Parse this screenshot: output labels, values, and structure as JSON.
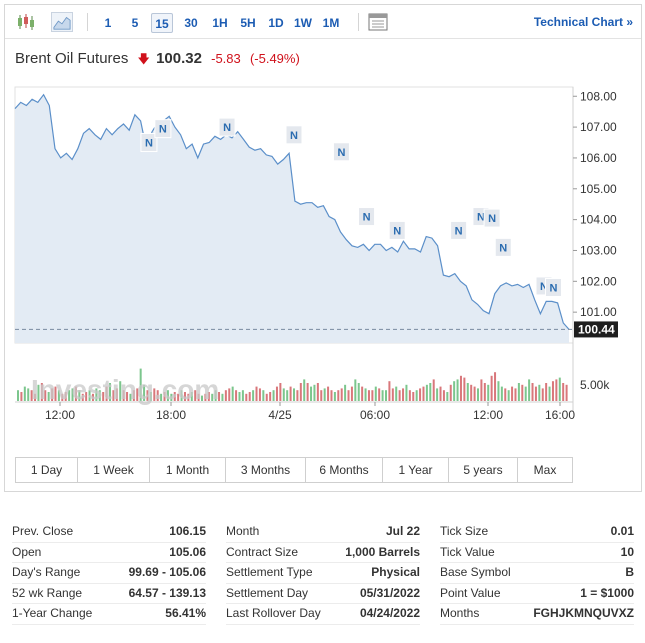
{
  "toolbar": {
    "timeframes": [
      "1",
      "5",
      "15",
      "30",
      "1H",
      "5H",
      "1D",
      "1W",
      "1M"
    ],
    "active_timeframe": "15",
    "technical_link": "Technical Chart »"
  },
  "quote": {
    "title": "Brent Oil Futures",
    "price": "100.32",
    "change": "-5.83",
    "change_pct": "(-5.49%)",
    "direction_icon": "down-arrow-icon",
    "down_color": "#d0111b"
  },
  "chart_data": {
    "type": "area",
    "line_color": "#5b8fc9",
    "fill_color": "#e3ebf4",
    "x_ticks": [
      "12:00",
      "18:00",
      "4/25",
      "06:00",
      "12:00",
      "16:00"
    ],
    "y_ticks": [
      "108.00",
      "107.00",
      "106.00",
      "105.00",
      "104.00",
      "103.00",
      "102.00",
      "101.00"
    ],
    "ylim": [
      100.0,
      108.3
    ],
    "last_price_label": "100.44",
    "last_price": 100.44,
    "volume_label": "5.00k",
    "news_marker": "N",
    "prices": [
      107.6,
      107.8,
      107.7,
      107.9,
      107.8,
      108.05,
      107.7,
      106.3,
      106.0,
      106.15,
      105.95,
      106.3,
      106.8,
      106.95,
      106.75,
      106.6,
      106.95,
      106.75,
      106.95,
      107.1,
      106.9,
      107.4,
      107.2,
      106.3,
      106.85,
      107.15,
      107.2,
      107.35,
      107.0,
      106.75,
      106.3,
      106.45,
      106.0,
      106.45,
      106.5,
      106.7,
      106.6,
      106.75,
      106.65,
      106.85,
      106.6,
      106.35,
      106.25,
      106.3,
      106.1,
      106.05,
      105.8,
      105.95,
      106.15,
      104.6,
      104.5,
      104.55,
      104.55,
      104.4,
      104.45,
      104.1,
      104.0,
      103.6,
      103.35,
      103.15,
      103.1,
      103.2,
      103.0,
      103.2,
      103.2,
      103.0,
      103.1,
      102.95,
      103.3,
      103.05,
      103.05,
      102.95,
      103.45,
      103.4,
      103.15,
      102.2,
      102.15,
      102.25,
      102.0,
      101.85,
      101.4,
      101.25,
      101.05,
      100.95,
      101.6,
      101.85,
      101.95,
      101.85,
      101.9,
      101.8,
      101.9,
      101.4,
      100.95,
      101.35,
      101.35,
      101.3,
      100.65,
      100.44
    ],
    "news_markers": [
      {
        "x": 0.24,
        "y": 106.5
      },
      {
        "x": 0.265,
        "y": 106.95
      },
      {
        "x": 0.38,
        "y": 107.0
      },
      {
        "x": 0.5,
        "y": 106.75
      },
      {
        "x": 0.585,
        "y": 106.2
      },
      {
        "x": 0.63,
        "y": 104.1
      },
      {
        "x": 0.685,
        "y": 103.65
      },
      {
        "x": 0.795,
        "y": 103.65
      },
      {
        "x": 0.835,
        "y": 104.1
      },
      {
        "x": 0.855,
        "y": 104.05
      },
      {
        "x": 0.875,
        "y": 103.1
      },
      {
        "x": 0.948,
        "y": 101.85
      },
      {
        "x": 0.965,
        "y": 101.8
      }
    ],
    "volumes": [
      0.3,
      0.25,
      0.4,
      0.35,
      0.3,
      0.2,
      0.45,
      0.5,
      0.3,
      0.25,
      0.35,
      0.4,
      0.3,
      0.2,
      0.25,
      0.3,
      0.35,
      0.4,
      0.3,
      0.2,
      0.25,
      0.3,
      0.2,
      0.35,
      0.3,
      0.25,
      0.4,
      0.5,
      0.3,
      0.35,
      0.55,
      0.3,
      0.25,
      0.2,
      0.3,
      0.35,
      0.9,
      0.45,
      0.3,
      0.25,
      0.35,
      0.3,
      0.2,
      0.25,
      0.3,
      0.2,
      0.25,
      0.2,
      0.3,
      0.25,
      0.2,
      0.25,
      0.3,
      0.2,
      0.15,
      0.2,
      0.25,
      0.2,
      0.3,
      0.25,
      0.2,
      0.3,
      0.35,
      0.4,
      0.3,
      0.25,
      0.3,
      0.2,
      0.25,
      0.3,
      0.4,
      0.35,
      0.3,
      0.2,
      0.25,
      0.3,
      0.4,
      0.5,
      0.35,
      0.3,
      0.4,
      0.35,
      0.3,
      0.5,
      0.6,
      0.5,
      0.4,
      0.45,
      0.5,
      0.3,
      0.35,
      0.4,
      0.3,
      0.25,
      0.3,
      0.35,
      0.45,
      0.3,
      0.4,
      0.6,
      0.5,
      0.4,
      0.35,
      0.3,
      0.3,
      0.4,
      0.35,
      0.3,
      0.3,
      0.55,
      0.35,
      0.4,
      0.3,
      0.35,
      0.45,
      0.3,
      0.25,
      0.3,
      0.35,
      0.4,
      0.45,
      0.5,
      0.6,
      0.35,
      0.4,
      0.3,
      0.25,
      0.45,
      0.55,
      0.6,
      0.7,
      0.65,
      0.5,
      0.45,
      0.4,
      0.35,
      0.6,
      0.5,
      0.45,
      0.7,
      0.8,
      0.55,
      0.4,
      0.35,
      0.3,
      0.4,
      0.35,
      0.5,
      0.45,
      0.4,
      0.6,
      0.5,
      0.4,
      0.45,
      0.35,
      0.5,
      0.4,
      0.55,
      0.6,
      0.65,
      0.5,
      0.45
    ],
    "volume_colors": {
      "up": "#7cc68d",
      "down": "#d9777b"
    }
  },
  "ranges": [
    "1 Day",
    "1 Week",
    "1 Month",
    "3 Months",
    "6 Months",
    "1 Year",
    "5 years",
    "Max"
  ],
  "watermark": "Investing.com",
  "stats": {
    "col1": [
      {
        "label": "Prev. Close",
        "value": "106.15"
      },
      {
        "label": "Open",
        "value": "105.06"
      },
      {
        "label": "Day's Range",
        "value": "99.69 - 105.06"
      },
      {
        "label": "52 wk Range",
        "value": "64.57 - 139.13"
      },
      {
        "label": "1-Year Change",
        "value": "56.41%"
      }
    ],
    "col2": [
      {
        "label": "Month",
        "value": "Jul 22"
      },
      {
        "label": "Contract Size",
        "value": "1,000 Barrels"
      },
      {
        "label": "Settlement Type",
        "value": "Physical"
      },
      {
        "label": "Settlement Day",
        "value": "05/31/2022"
      },
      {
        "label": "Last Rollover Day",
        "value": "04/24/2022"
      }
    ],
    "col3": [
      {
        "label": "Tick Size",
        "value": "0.01"
      },
      {
        "label": "Tick Value",
        "value": "10"
      },
      {
        "label": "Base Symbol",
        "value": "B"
      },
      {
        "label": "Point Value",
        "value": "1 = $1000"
      },
      {
        "label": "Months",
        "value": "FGHJKMNQUVXZ"
      }
    ]
  }
}
